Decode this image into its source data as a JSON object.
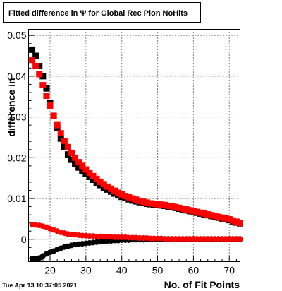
{
  "chart_data": {
    "type": "scatter",
    "title": "Fitted difference in  Ψ  for Global Rec Pion NoHits",
    "xlabel": "No. of Fit Points",
    "ylabel": "difference in",
    "xlim": [
      14,
      73
    ],
    "ylim": [
      -0.0055,
      0.0515
    ],
    "x_ticks": [
      20,
      30,
      40,
      50,
      60,
      70
    ],
    "y_ticks": [
      0,
      0.01,
      0.02,
      0.03,
      0.04,
      0.05
    ],
    "y_tick_labels": [
      "0",
      "0.01",
      "0.02",
      "0.03",
      "0.04",
      "0.05"
    ],
    "grid": true,
    "series": [
      {
        "color": "#000000",
        "marker": "square",
        "x": [
          15,
          16,
          17,
          18,
          19,
          20,
          21,
          22,
          23,
          24,
          25,
          26,
          27,
          28,
          29,
          30,
          31,
          32,
          33,
          34,
          35,
          36,
          37,
          38,
          39,
          40,
          41,
          42,
          43,
          44,
          45,
          46,
          47,
          48,
          49,
          50,
          51,
          52,
          53,
          54,
          55,
          56,
          57,
          58,
          59,
          60,
          61,
          62,
          63,
          64,
          65,
          66,
          67,
          68,
          69,
          70,
          71,
          72,
          73
        ],
        "y": [
          0.0465,
          0.045,
          0.0425,
          0.04,
          0.037,
          0.0335,
          0.0302,
          0.0273,
          0.0247,
          0.0226,
          0.0208,
          0.0195,
          0.0184,
          0.0176,
          0.0168,
          0.016,
          0.0153,
          0.0146,
          0.0139,
          0.0133,
          0.0127,
          0.0122,
          0.0117,
          0.0112,
          0.0108,
          0.0104,
          0.0101,
          0.0098,
          0.0095,
          0.0093,
          0.0091,
          0.0089,
          0.0087,
          0.0086,
          0.0085,
          0.0084,
          0.0083,
          0.0082,
          0.008,
          0.0079,
          0.0077,
          0.0075,
          0.0073,
          0.0071,
          0.0069,
          0.0067,
          0.0065,
          0.0063,
          0.0061,
          0.0059,
          0.0057,
          0.0055,
          0.0053,
          0.0051,
          0.0049,
          0.0047,
          0.0044,
          0.0041,
          0.0039
        ]
      },
      {
        "color": "#ff0000",
        "marker": "square",
        "x": [
          15,
          16,
          17,
          18,
          19,
          20,
          21,
          22,
          23,
          24,
          25,
          26,
          27,
          28,
          29,
          30,
          31,
          32,
          33,
          34,
          35,
          36,
          37,
          38,
          39,
          40,
          41,
          42,
          43,
          44,
          45,
          46,
          47,
          48,
          49,
          50,
          51,
          52,
          53,
          54,
          55,
          56,
          57,
          58,
          59,
          60,
          61,
          62,
          63,
          64,
          65,
          66,
          67,
          68,
          69,
          70,
          71,
          72,
          73
        ],
        "y": [
          0.044,
          0.0425,
          0.0405,
          0.0378,
          0.0352,
          0.0328,
          0.0303,
          0.028,
          0.026,
          0.0241,
          0.0226,
          0.0212,
          0.02,
          0.0189,
          0.018,
          0.0171,
          0.0163,
          0.0155,
          0.0148,
          0.0141,
          0.0135,
          0.0129,
          0.0124,
          0.0119,
          0.0114,
          0.011,
          0.0106,
          0.0103,
          0.01,
          0.0097,
          0.0094,
          0.0092,
          0.009,
          0.0088,
          0.0087,
          0.0086,
          0.0085,
          0.0084,
          0.0082,
          0.0081,
          0.0079,
          0.0077,
          0.0075,
          0.0073,
          0.0071,
          0.0069,
          0.0067,
          0.0065,
          0.0063,
          0.0061,
          0.0059,
          0.0057,
          0.0055,
          0.0053,
          0.0051,
          0.0049,
          0.0046,
          0.0043,
          0.004
        ]
      },
      {
        "color": "#000000",
        "marker": "circle",
        "x": [
          15,
          16,
          17,
          18,
          19,
          20,
          21,
          22,
          23,
          24,
          25,
          26,
          27,
          28,
          29,
          30,
          31,
          32,
          33,
          34,
          35,
          36,
          37,
          38,
          39,
          40,
          41,
          42,
          43,
          44,
          45,
          46,
          47,
          48,
          49,
          50,
          51,
          52,
          53,
          54,
          55,
          56,
          57,
          58,
          59,
          60,
          61,
          62,
          63,
          64,
          65,
          66,
          67,
          68,
          69,
          70,
          71,
          72,
          73
        ],
        "y": [
          -0.0047,
          -0.0048,
          -0.0046,
          -0.0041,
          -0.0036,
          -0.0032,
          -0.0029,
          -0.0025,
          -0.0022,
          -0.0019,
          -0.0017,
          -0.0015,
          -0.0013,
          -0.0012,
          -0.0011,
          -0.001,
          -0.0009,
          -0.0008,
          -0.0007,
          -0.0006,
          -0.0005,
          -0.0004,
          -0.0004,
          -0.0003,
          -0.0003,
          -0.0002,
          -0.0002,
          -0.0002,
          -0.0001,
          -0.0001,
          -0.0001,
          -0.0001,
          0,
          0,
          0,
          0,
          0,
          0,
          0,
          0,
          0,
          0,
          0,
          0,
          0,
          0,
          0,
          0,
          0,
          0,
          0,
          0,
          0,
          0,
          0,
          0,
          0,
          0,
          0
        ]
      },
      {
        "color": "#ff0000",
        "marker": "circle",
        "x": [
          15,
          16,
          17,
          18,
          19,
          20,
          21,
          22,
          23,
          24,
          25,
          26,
          27,
          28,
          29,
          30,
          31,
          32,
          33,
          34,
          35,
          36,
          37,
          38,
          39,
          40,
          41,
          42,
          43,
          44,
          45,
          46,
          47,
          48,
          49,
          50,
          51,
          52,
          53,
          54,
          55,
          56,
          57,
          58,
          59,
          60,
          61,
          62,
          63,
          64,
          65,
          66,
          67,
          68,
          69,
          70,
          71,
          72,
          73
        ],
        "y": [
          0.0036,
          0.0035,
          0.0034,
          0.0032,
          0.003,
          0.0026,
          0.0023,
          0.002,
          0.0017,
          0.0015,
          0.0013,
          0.0012,
          0.0011,
          0.001,
          0.0009,
          0.0009,
          0.0008,
          0.0008,
          0.0007,
          0.0007,
          0.0006,
          0.0006,
          0.0006,
          0.0005,
          0.0005,
          0.0005,
          0.0005,
          0.0004,
          0.0004,
          0.0004,
          0.0003,
          0.0003,
          0.0003,
          0.0002,
          0.0002,
          0.0002,
          0.0002,
          0.0001,
          0.0001,
          0.0001,
          0.0001,
          0.0001,
          0.0001,
          0.0001,
          0.0001,
          0.0001,
          0.0001,
          0.0001,
          0.0001,
          0.0001,
          0.0001,
          0.0001,
          0.0001,
          0.0001,
          0.0001,
          0.0001,
          0.0001,
          0.0001,
          0.0001
        ]
      }
    ]
  },
  "footer": {
    "timestamp": "Tue Apr 13 10:37:05 2021"
  }
}
